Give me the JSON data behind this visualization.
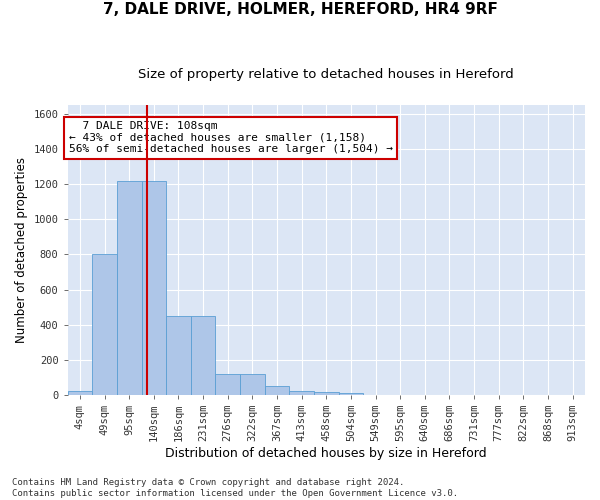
{
  "title1": "7, DALE DRIVE, HOLMER, HEREFORD, HR4 9RF",
  "title2": "Size of property relative to detached houses in Hereford",
  "xlabel": "Distribution of detached houses by size in Hereford",
  "ylabel": "Number of detached properties",
  "bar_values": [
    25,
    800,
    1220,
    1220,
    450,
    450,
    120,
    120,
    50,
    25,
    15,
    10,
    0,
    0,
    0,
    0,
    0,
    0,
    0,
    0,
    0
  ],
  "bin_labels": [
    "4sqm",
    "49sqm",
    "95sqm",
    "140sqm",
    "186sqm",
    "231sqm",
    "276sqm",
    "322sqm",
    "367sqm",
    "413sqm",
    "458sqm",
    "504sqm",
    "549sqm",
    "595sqm",
    "640sqm",
    "686sqm",
    "731sqm",
    "777sqm",
    "822sqm",
    "868sqm",
    "913sqm"
  ],
  "bar_color": "#aec6e8",
  "bar_edge_color": "#5a9fd4",
  "vline_x": 2.72,
  "vline_color": "#cc0000",
  "annotation_text": "  7 DALE DRIVE: 108sqm  \n← 43% of detached houses are smaller (1,158)\n56% of semi-detached houses are larger (1,504) →",
  "annotation_box_color": "#cc0000",
  "ylim": [
    0,
    1650
  ],
  "yticks": [
    0,
    200,
    400,
    600,
    800,
    1000,
    1200,
    1400,
    1600
  ],
  "bg_color": "#dce6f5",
  "footer_text": "Contains HM Land Registry data © Crown copyright and database right 2024.\nContains public sector information licensed under the Open Government Licence v3.0.",
  "title1_fontsize": 11,
  "title2_fontsize": 9.5,
  "xlabel_fontsize": 9,
  "ylabel_fontsize": 8.5,
  "tick_fontsize": 7.5,
  "footer_fontsize": 6.5,
  "annot_fontsize": 8
}
